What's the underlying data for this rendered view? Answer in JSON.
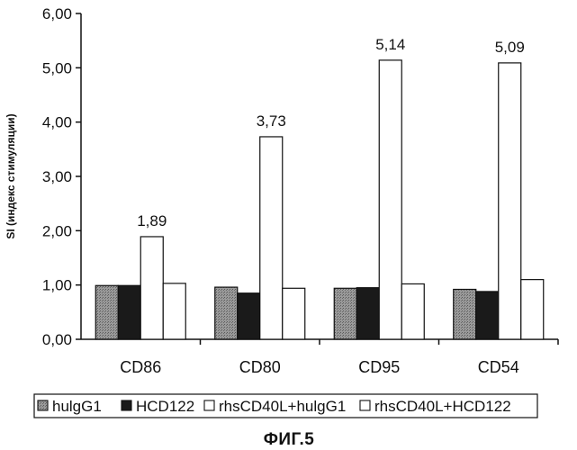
{
  "chart_data": {
    "type": "bar",
    "ylabel": "SI (индекс стимуляции)",
    "ylim": [
      0,
      6
    ],
    "yticks": [
      "0,00",
      "1,00",
      "2,00",
      "3,00",
      "4,00",
      "5,00",
      "6,00"
    ],
    "categories": [
      "CD86",
      "CD80",
      "CD95",
      "CD54"
    ],
    "series": [
      {
        "name": "hulgG1",
        "values": [
          0.99,
          0.96,
          0.94,
          0.92
        ],
        "fill": "#8a8a8a"
      },
      {
        "name": "HCD122",
        "values": [
          0.99,
          0.85,
          0.95,
          0.88
        ],
        "fill": "#1a1a1a"
      },
      {
        "name": "rhsCD40L+hulgG1",
        "values": [
          1.89,
          3.73,
          5.14,
          5.09
        ],
        "fill": "#ffffff"
      },
      {
        "name": "rhsCD40L+HCD122",
        "values": [
          1.03,
          0.94,
          1.02,
          1.1
        ],
        "fill": "#ffffff"
      }
    ],
    "data_labels": [
      "1,89",
      "3,73",
      "5,14",
      "5,09"
    ],
    "legend_position": "bottom",
    "grid": false
  },
  "caption": "ФИГ.5"
}
